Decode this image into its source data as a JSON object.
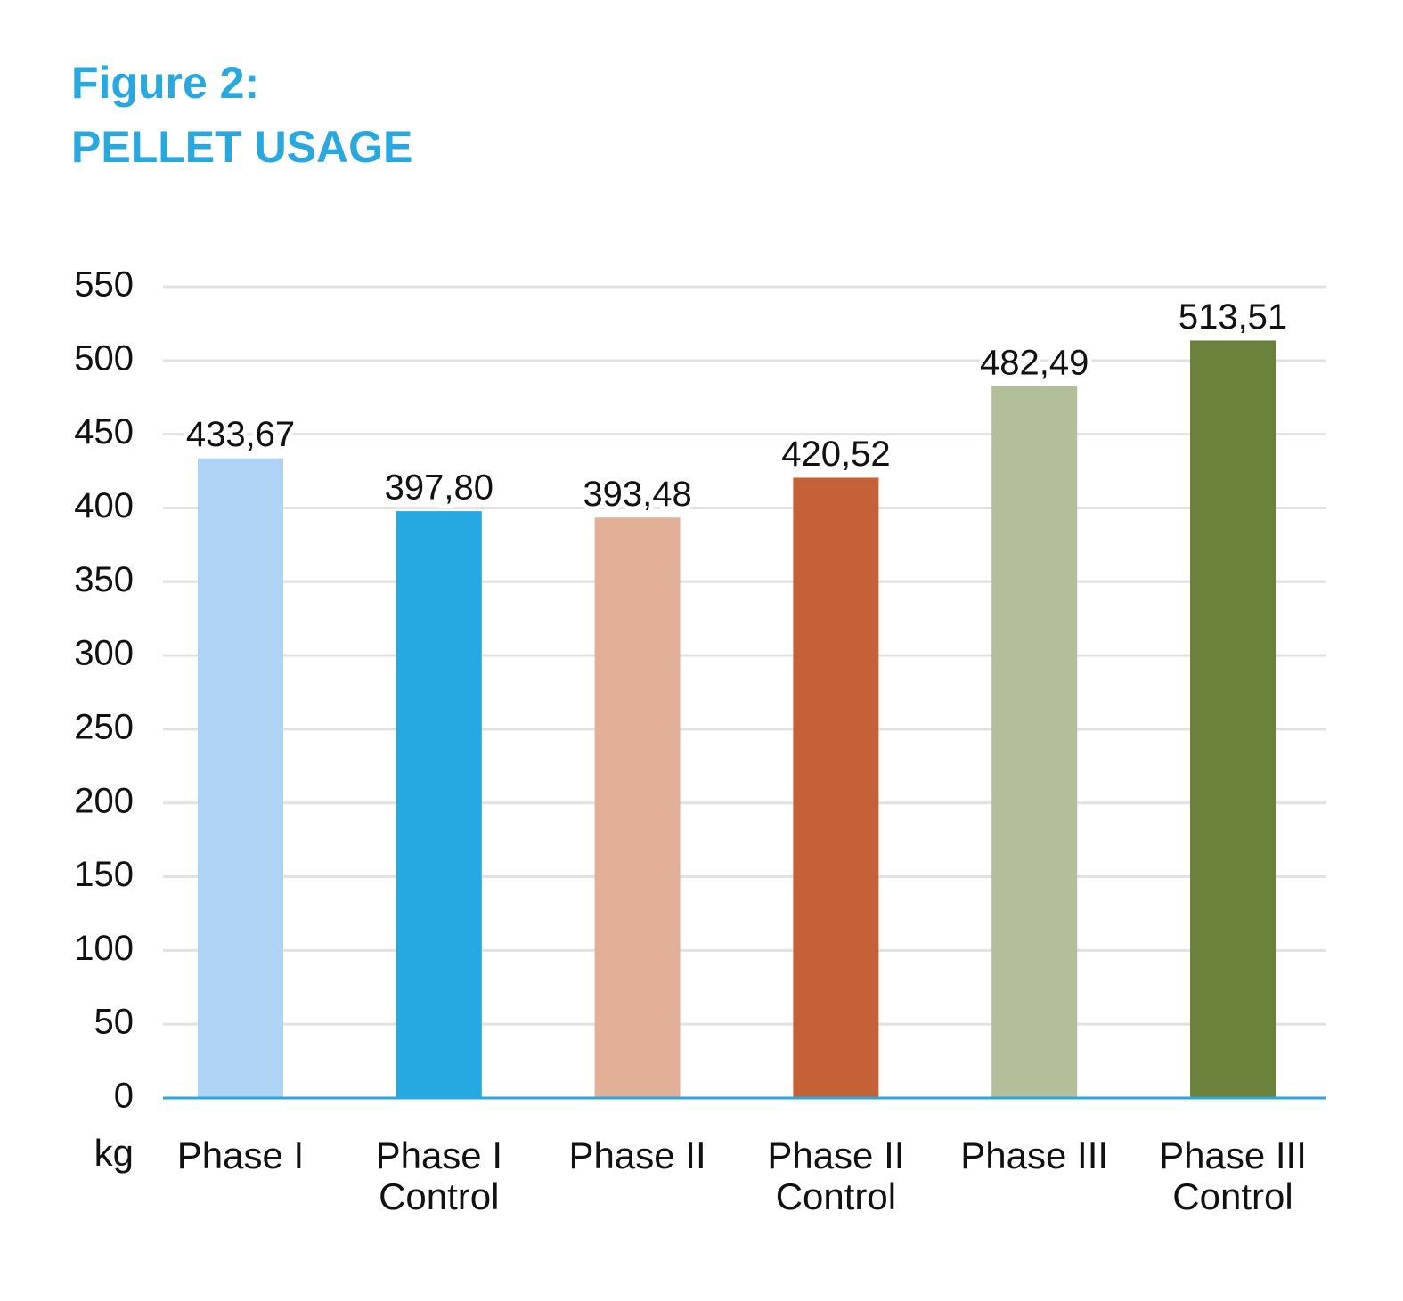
{
  "chart_data": {
    "type": "bar",
    "title": "Figure 2:",
    "subtitle": "PELLET USAGE",
    "y_label": "kg",
    "categories": [
      "Phase I",
      "Phase I Control",
      "Phase II",
      "Phase II Control",
      "Phase III",
      "Phase III Control"
    ],
    "values": [
      433.67,
      397.8,
      393.48,
      420.52,
      482.49,
      513.51
    ],
    "value_labels": [
      "433,67",
      "397,80",
      "393,48",
      "420,52",
      "482,49",
      "513,51"
    ],
    "colors": [
      "#aed3f5",
      "#25a9e0",
      "#e1b096",
      "#c46137",
      "#b3bf99",
      "#6a823c"
    ],
    "ylim": [
      0,
      550
    ],
    "yticks": [
      0,
      50,
      100,
      150,
      200,
      250,
      300,
      350,
      400,
      450,
      500,
      550
    ],
    "grid": true
  }
}
